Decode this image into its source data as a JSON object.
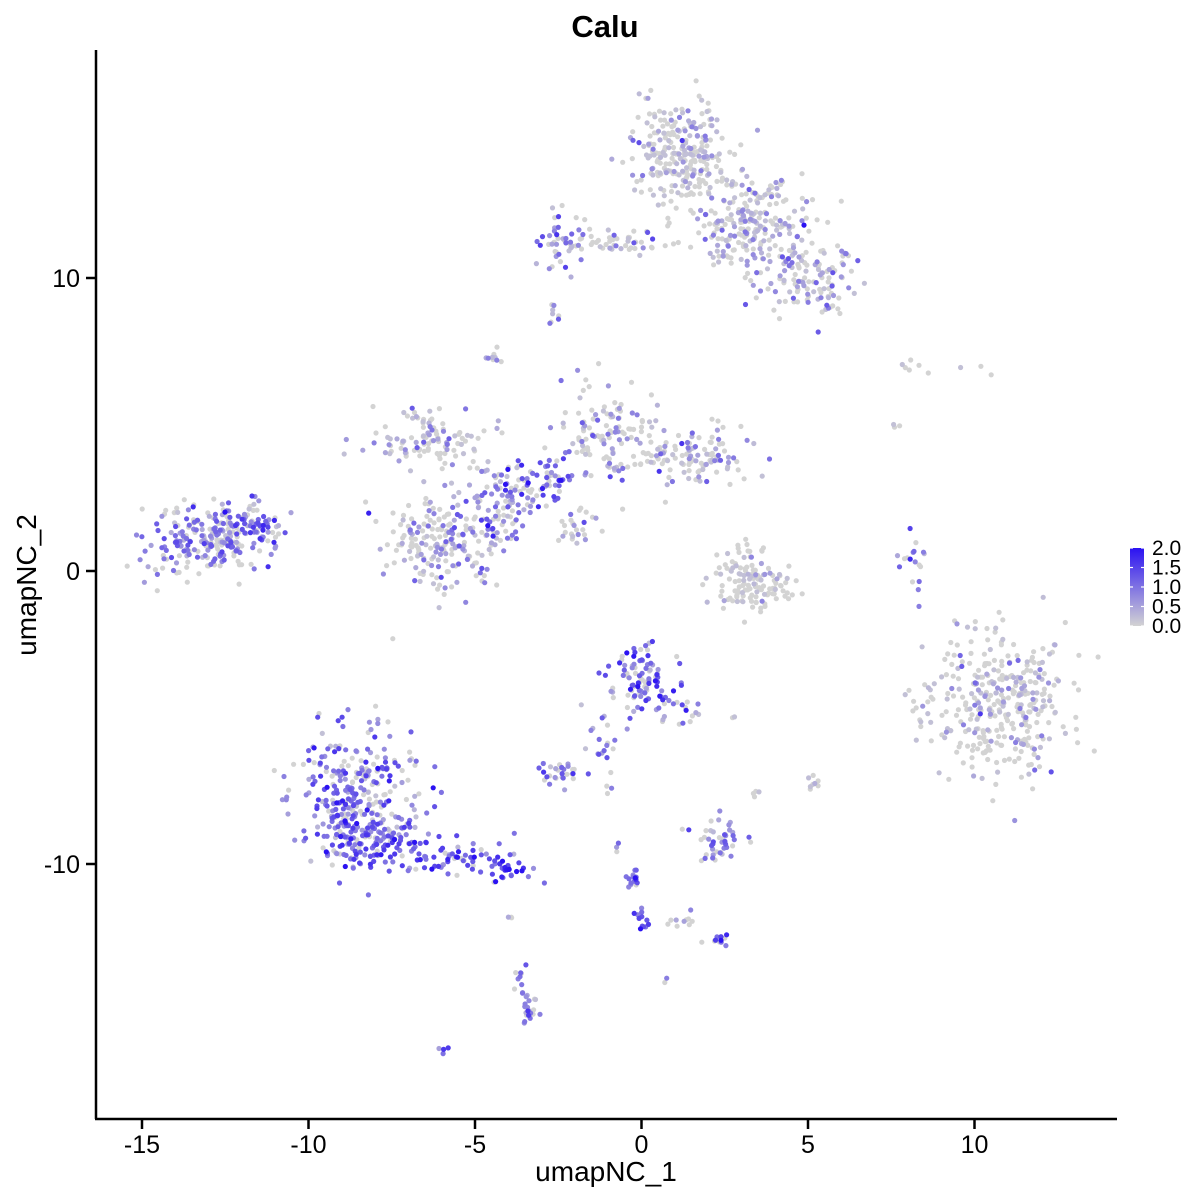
{
  "chart_data": {
    "type": "scatter",
    "title": "Calu",
    "xlabel": "umapNC_1",
    "ylabel": "umapNC_2",
    "xlim": [
      -16.5,
      14.5
    ],
    "ylim": [
      -18.5,
      17.5
    ],
    "x_ticks": [
      {
        "value": -15,
        "label": "-15"
      },
      {
        "value": -10,
        "label": "-10"
      },
      {
        "value": -5,
        "label": "-5"
      },
      {
        "value": 0,
        "label": "0"
      },
      {
        "value": 5,
        "label": "5"
      },
      {
        "value": 10,
        "label": "10"
      }
    ],
    "y_ticks": [
      {
        "value": -10,
        "label": "-10"
      },
      {
        "value": 0,
        "label": "0"
      },
      {
        "value": 10,
        "label": "10"
      }
    ],
    "color_scale": {
      "low": "#D3D3D3",
      "high": "#2B12F2",
      "min": 0.0,
      "max": 2.0,
      "ticks": [
        {
          "value": 2.0,
          "label": "2.0"
        },
        {
          "value": 1.5,
          "label": "1.5"
        },
        {
          "value": 1.0,
          "label": "1.0"
        },
        {
          "value": 0.5,
          "label": "0.5"
        },
        {
          "value": 0.0,
          "label": "0.0"
        }
      ]
    },
    "legend_position": "right",
    "grid": false,
    "clusters": [
      {
        "cx": 1.2,
        "cy": 14.2,
        "sx": 0.7,
        "sy": 0.9,
        "n": 260,
        "expr": 0.3
      },
      {
        "cx": 3.4,
        "cy": 11.8,
        "sx": 0.9,
        "sy": 0.8,
        "n": 230,
        "expr": 0.4
      },
      {
        "cx": 5.0,
        "cy": 10.0,
        "sx": 0.8,
        "sy": 0.7,
        "n": 120,
        "expr": 0.55
      },
      {
        "cx": -2.4,
        "cy": 11.3,
        "sx": 0.4,
        "sy": 0.5,
        "n": 45,
        "expr": 0.9
      },
      {
        "cx": -0.5,
        "cy": 11.2,
        "sx": 1.0,
        "sy": 0.15,
        "n": 50,
        "expr": 0.35
      },
      {
        "cx": -2.7,
        "cy": 8.7,
        "sx": 0.1,
        "sy": 0.2,
        "n": 8,
        "expr": 0.5
      },
      {
        "cx": -13.0,
        "cy": 1.1,
        "sx": 0.9,
        "sy": 0.6,
        "n": 230,
        "expr": 0.9
      },
      {
        "cx": -11.5,
        "cy": 1.6,
        "sx": 0.4,
        "sy": 0.4,
        "n": 50,
        "expr": 1.0
      },
      {
        "cx": -6.0,
        "cy": 1.0,
        "sx": 0.9,
        "sy": 0.8,
        "n": 200,
        "expr": 0.6
      },
      {
        "cx": -4.3,
        "cy": 2.3,
        "sx": 0.6,
        "sy": 0.7,
        "n": 90,
        "expr": 0.8
      },
      {
        "cx": -3.0,
        "cy": 3.1,
        "sx": 0.5,
        "sy": 0.4,
        "n": 60,
        "expr": 1.1
      },
      {
        "cx": -6.2,
        "cy": 4.5,
        "sx": 0.9,
        "sy": 0.5,
        "n": 110,
        "expr": 0.35
      },
      {
        "cx": -1.0,
        "cy": 4.8,
        "sx": 0.7,
        "sy": 0.8,
        "n": 120,
        "expr": 0.6
      },
      {
        "cx": 1.5,
        "cy": 4.0,
        "sx": 0.9,
        "sy": 0.5,
        "n": 120,
        "expr": 0.4
      },
      {
        "cx": -4.5,
        "cy": 7.3,
        "sx": 0.15,
        "sy": 0.15,
        "n": 10,
        "expr": 0.6
      },
      {
        "cx": -2.0,
        "cy": 1.5,
        "sx": 0.4,
        "sy": 0.4,
        "n": 25,
        "expr": 0.4
      },
      {
        "cx": 3.3,
        "cy": -0.5,
        "sx": 0.6,
        "sy": 0.4,
        "n": 110,
        "expr": 0.1
      },
      {
        "cx": 3.1,
        "cy": 0.4,
        "sx": 0.3,
        "sy": 0.4,
        "n": 25,
        "expr": 0.3
      },
      {
        "cx": 8.2,
        "cy": 0.3,
        "sx": 0.2,
        "sy": 0.5,
        "n": 18,
        "expr": 0.8
      },
      {
        "cx": 10.8,
        "cy": -4.5,
        "sx": 1.0,
        "sy": 1.2,
        "n": 340,
        "expr": 0.25
      },
      {
        "cx": 8.5,
        "cy": -4.6,
        "sx": 0.2,
        "sy": 0.4,
        "n": 15,
        "expr": 0.2
      },
      {
        "cx": -8.5,
        "cy": -7.8,
        "sx": 0.9,
        "sy": 1.2,
        "n": 330,
        "expr": 1.05
      },
      {
        "cx": -8.0,
        "cy": -9.3,
        "sx": 0.7,
        "sy": 0.5,
        "n": 80,
        "expr": 1.1
      },
      {
        "cx": -5.5,
        "cy": -9.7,
        "sx": 0.9,
        "sy": 0.35,
        "n": 70,
        "expr": 1.3
      },
      {
        "cx": -4.0,
        "cy": -10.3,
        "sx": 0.3,
        "sy": 0.2,
        "n": 18,
        "expr": 1.5
      },
      {
        "cx": 0.0,
        "cy": -3.7,
        "sx": 0.5,
        "sy": 0.6,
        "n": 100,
        "expr": 1.1
      },
      {
        "cx": 1.2,
        "cy": -4.8,
        "sx": 0.3,
        "sy": 0.3,
        "n": 18,
        "expr": 1.0
      },
      {
        "cx": -1.2,
        "cy": -5.7,
        "sx": 0.3,
        "sy": 0.6,
        "n": 18,
        "expr": 0.9
      },
      {
        "cx": -2.5,
        "cy": -6.9,
        "sx": 0.3,
        "sy": 0.2,
        "n": 28,
        "expr": 0.9
      },
      {
        "cx": 2.3,
        "cy": -9.2,
        "sx": 0.4,
        "sy": 0.4,
        "n": 45,
        "expr": 0.7
      },
      {
        "cx": -0.2,
        "cy": -10.6,
        "sx": 0.15,
        "sy": 0.3,
        "n": 16,
        "expr": 1.3
      },
      {
        "cx": 0.0,
        "cy": -11.9,
        "sx": 0.15,
        "sy": 0.2,
        "n": 12,
        "expr": 1.2
      },
      {
        "cx": 1.2,
        "cy": -11.9,
        "sx": 0.4,
        "sy": 0.15,
        "n": 10,
        "expr": 0.5
      },
      {
        "cx": 2.4,
        "cy": -12.6,
        "sx": 0.2,
        "sy": 0.1,
        "n": 12,
        "expr": 1.1
      },
      {
        "cx": -3.4,
        "cy": -14.9,
        "sx": 0.15,
        "sy": 0.3,
        "n": 22,
        "expr": 1.0
      },
      {
        "cx": -3.6,
        "cy": -13.8,
        "sx": 0.1,
        "sy": 0.3,
        "n": 8,
        "expr": 0.9
      },
      {
        "cx": -6.0,
        "cy": -16.3,
        "sx": 0.08,
        "sy": 0.08,
        "n": 4,
        "expr": 1.0
      },
      {
        "cx": -3.9,
        "cy": -11.8,
        "sx": 0.05,
        "sy": 0.1,
        "n": 3,
        "expr": 1.0
      },
      {
        "cx": 5.1,
        "cy": -7.2,
        "sx": 0.15,
        "sy": 0.15,
        "n": 8,
        "expr": 0.3
      },
      {
        "cx": 3.4,
        "cy": -7.6,
        "sx": 0.1,
        "sy": 0.1,
        "n": 4,
        "expr": 0.3
      },
      {
        "cx": 9.0,
        "cy": 6.9,
        "sx": 1.0,
        "sy": 0.2,
        "n": 9,
        "expr": 0.0
      },
      {
        "cx": 7.6,
        "cy": 4.8,
        "sx": 0.1,
        "sy": 0.2,
        "n": 3,
        "expr": 0.0
      },
      {
        "cx": 2.7,
        "cy": -5.0,
        "sx": 0.05,
        "sy": 0.05,
        "n": 2,
        "expr": 0.2
      },
      {
        "cx": 0.7,
        "cy": -14.0,
        "sx": 0.05,
        "sy": 0.05,
        "n": 2,
        "expr": 0.8
      },
      {
        "cx": -0.8,
        "cy": -9.4,
        "sx": 0.08,
        "sy": 0.1,
        "n": 3,
        "expr": 0.5
      },
      {
        "cx": -1.1,
        "cy": -7.5,
        "sx": 0.1,
        "sy": 0.1,
        "n": 3,
        "expr": 0.3
      }
    ]
  }
}
